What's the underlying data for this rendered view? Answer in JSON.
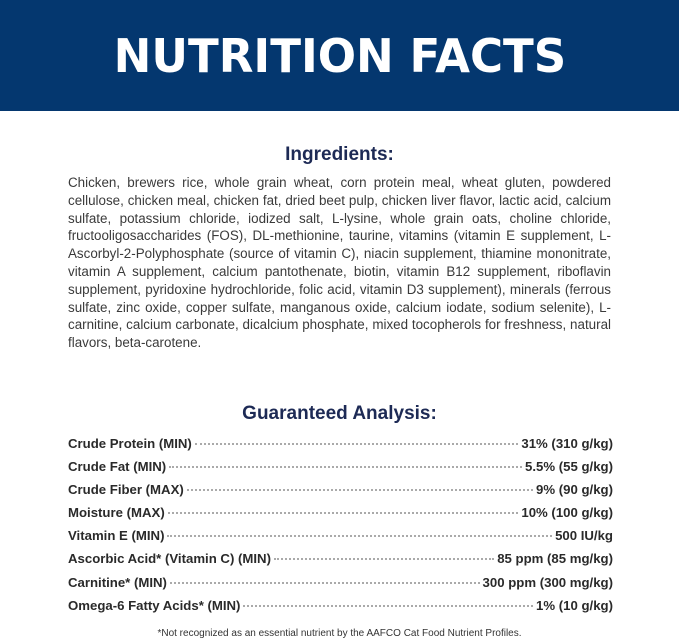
{
  "header": {
    "title": "NUTRITION FACTS",
    "background": "#04376f"
  },
  "ingredients": {
    "heading": "Ingredients:",
    "text": "Chicken, brewers rice, whole grain wheat, corn protein meal, wheat gluten, powdered cellulose, chicken meal, chicken fat, dried beet pulp, chicken liver flavor, lactic acid, calcium sulfate, potassium chloride, iodized salt, L-lysine, whole grain oats, choline chloride, fructooligosaccharides (FOS), DL-methionine, taurine, vitamins (vitamin E supplement, L-Ascorbyl-2-Polyphosphate (source of vitamin C), niacin supplement, thiamine mononitrate, vitamin A supplement, calcium pantothenate, biotin, vitamin B12 supplement, riboflavin supplement, pyridoxine hydrochloride, folic acid, vitamin D3 supplement), minerals (ferrous sulfate, zinc oxide, copper sulfate, manganous oxide, calcium iodate, sodium selenite), L-carnitine, calcium carbonate, dicalcium phosphate, mixed tocopherols for freshness, natural flavors, beta-carotene."
  },
  "analysis": {
    "heading": "Guaranteed Analysis:",
    "rows": [
      {
        "label": "Crude Protein (MIN)",
        "value": "31% (310 g/kg)"
      },
      {
        "label": "Crude Fat (MIN)",
        "value": "5.5% (55 g/kg)"
      },
      {
        "label": "Crude Fiber (MAX)",
        "value": "9% (90 g/kg)"
      },
      {
        "label": "Moisture (MAX)",
        "value": "10% (100 g/kg)"
      },
      {
        "label": "Vitamin E (MIN)",
        "value": "500 IU/kg"
      },
      {
        "label": "Ascorbic Acid* (Vitamin C) (MIN)",
        "value": "85 ppm (85 mg/kg)"
      },
      {
        "label": "Carnitine* (MIN)",
        "value": "300 ppm (300 mg/kg)"
      },
      {
        "label": "Omega-6 Fatty Acids* (MIN)",
        "value": "1% (10 g/kg)"
      }
    ]
  },
  "footnote": "*Not recognized as an essential nutrient by the AAFCO Cat Food Nutrient Profiles."
}
